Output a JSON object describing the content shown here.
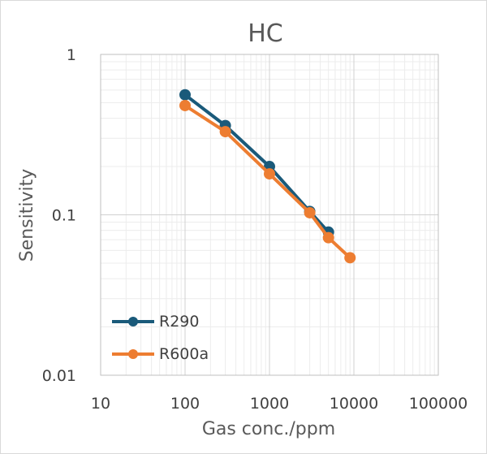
{
  "chart_data": {
    "type": "line",
    "title": "HC",
    "xlabel": "Gas conc./ppm",
    "ylabel": "Sensitivity",
    "x_scale": "log",
    "y_scale": "log",
    "xlim": [
      10,
      100000
    ],
    "ylim": [
      0.01,
      1
    ],
    "x_ticks": [
      "10",
      "100",
      "1000",
      "10000",
      "100000"
    ],
    "y_ticks": [
      "0.01",
      "0.1",
      "1"
    ],
    "grid": true,
    "legend_position": "bottom-left",
    "series": [
      {
        "name": "R290",
        "color": "#1a5a7a",
        "x": [
          100,
          300,
          1000,
          3000,
          5000
        ],
        "y": [
          0.56,
          0.36,
          0.2,
          0.105,
          0.078
        ]
      },
      {
        "name": "R600a",
        "color": "#ed7d31",
        "x": [
          100,
          300,
          1000,
          3000,
          5000,
          9000
        ],
        "y": [
          0.48,
          0.33,
          0.18,
          0.103,
          0.072,
          0.054
        ]
      }
    ]
  }
}
